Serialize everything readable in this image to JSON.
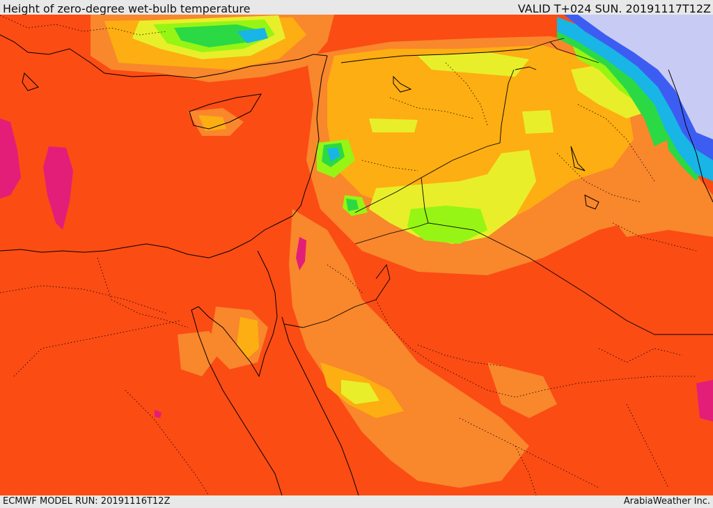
{
  "header": {
    "title": "Height of zero-degree wet-bulb temperature",
    "valid_time": "VALID T+024 SUN. 20191117T12Z"
  },
  "footer": {
    "model_run": "ECMWF MODEL RUN: 20191116T12Z",
    "credit": "ArabiaWeather Inc."
  },
  "palette": {
    "deep_orange": "#fb4c14",
    "orange": "#f9872c",
    "amber": "#fdae12",
    "yellow": "#e8ef2a",
    "lime": "#96f514",
    "green": "#2bd945",
    "cyan": "#18b5e6",
    "blue": "#3d5df2",
    "lavender": "#c8ccf5",
    "magenta": "#e31e79"
  }
}
